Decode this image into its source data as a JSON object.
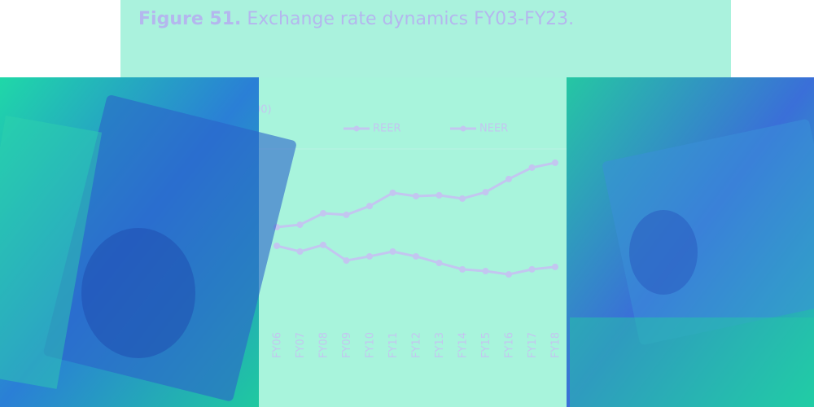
{
  "chart_data": {
    "type": "line",
    "title_prefix": "Figure 51.",
    "title": "Exchange rate dynamics FY03-FY23.",
    "ylabel": "00)",
    "categories": [
      "FY06",
      "FY07",
      "FY08",
      "FY09",
      "FY10",
      "FY11",
      "FY12",
      "FY13",
      "FY14",
      "FY15",
      "FY16",
      "FY17",
      "FY18"
    ],
    "series": [
      {
        "name": "REER",
        "color": "#c3c6f0",
        "values": [
          94.8,
          95.9,
          101.1,
          100.4,
          104.4,
          110.4,
          108.9,
          109.3,
          107.8,
          110.7,
          116.7,
          121.9,
          124.1
        ]
      },
      {
        "name": "NEER",
        "color": "#c3c6f0",
        "values": [
          86.3,
          83.7,
          86.7,
          79.6,
          81.5,
          83.7,
          81.5,
          78.5,
          75.6,
          74.8,
          73.3,
          75.6,
          76.7
        ]
      }
    ],
    "ylim": [
      50,
      150
    ],
    "grid": true
  }
}
